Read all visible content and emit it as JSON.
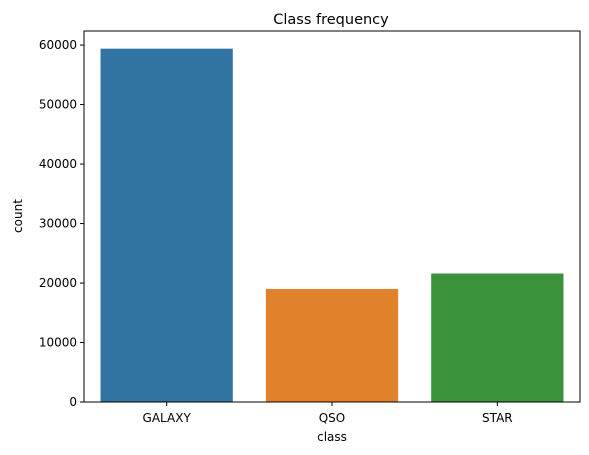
{
  "chart_data": {
    "type": "bar",
    "title": "Class frequency",
    "xlabel": "class",
    "ylabel": "count",
    "categories": [
      "GALAXY",
      "QSO",
      "STAR"
    ],
    "values": [
      59400,
      19000,
      21600
    ],
    "colors": [
      "#3274a1",
      "#e1812c",
      "#3a923a"
    ],
    "ylim": [
      0,
      62370
    ],
    "yticks": [
      0,
      10000,
      20000,
      30000,
      40000,
      50000,
      60000
    ],
    "ytick_labels": [
      "0",
      "10000",
      "20000",
      "30000",
      "40000",
      "50000",
      "60000"
    ],
    "grid": false,
    "legend": false
  }
}
